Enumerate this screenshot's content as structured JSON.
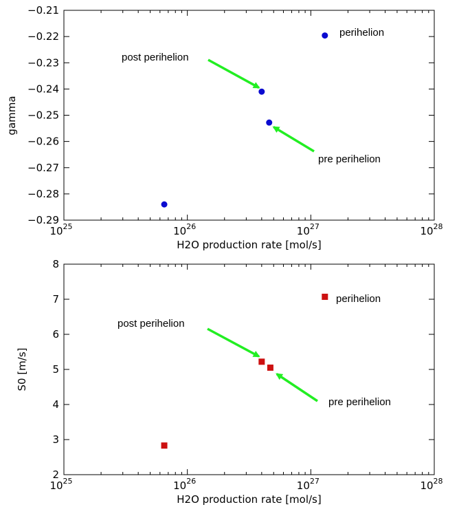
{
  "chart_data": [
    {
      "type": "scatter",
      "xlabel": "H2O production rate [mol/s]",
      "ylabel": "gamma",
      "xscale": "log",
      "xlim": [
        1e+25,
        1e+28
      ],
      "ylim": [
        -0.29,
        -0.21
      ],
      "x_ticks": [
        {
          "base": "10",
          "exp": "25"
        },
        {
          "base": "10",
          "exp": "26"
        },
        {
          "base": "10",
          "exp": "27"
        },
        {
          "base": "10",
          "exp": "28"
        }
      ],
      "y_ticks": [
        "−0.29",
        "−0.28",
        "−0.27",
        "−0.26",
        "−0.25",
        "−0.24",
        "−0.23",
        "−0.22",
        "−0.21"
      ],
      "marker": "circle",
      "color": "#0b0bd0",
      "points": [
        {
          "x": 6.5e+25,
          "y": -0.284
        },
        {
          "x": 4e+26,
          "y": -0.241
        },
        {
          "x": 4.6e+26,
          "y": -0.2528
        },
        {
          "x": 1.3e+27,
          "y": -0.2196
        }
      ],
      "legend": "perihelion",
      "annotations": [
        {
          "text": "post perihelion",
          "arrow_to": {
            "x": 3.8e+26,
            "y": -0.2395
          }
        },
        {
          "text": "pre perihelion",
          "arrow_to": {
            "x": 5e+26,
            "y": -0.2545
          }
        }
      ]
    },
    {
      "type": "scatter",
      "xlabel": "H2O production rate [mol/s]",
      "ylabel": "S0 [m/s]",
      "xscale": "log",
      "xlim": [
        1e+25,
        1e+28
      ],
      "ylim": [
        2,
        8
      ],
      "x_ticks": [
        {
          "base": "10",
          "exp": "25"
        },
        {
          "base": "10",
          "exp": "26"
        },
        {
          "base": "10",
          "exp": "27"
        },
        {
          "base": "10",
          "exp": "28"
        }
      ],
      "y_ticks": [
        "2",
        "3",
        "4",
        "5",
        "6",
        "7",
        "8"
      ],
      "marker": "square",
      "color": "#cc1111",
      "points": [
        {
          "x": 6.5e+25,
          "y": 2.83
        },
        {
          "x": 4e+26,
          "y": 5.22
        },
        {
          "x": 4.7e+26,
          "y": 5.05
        },
        {
          "x": 1.3e+27,
          "y": 7.07
        }
      ],
      "legend": "perihelion",
      "annotations": [
        {
          "text": "post perihelion",
          "arrow_to": {
            "x": 3.8e+26,
            "y": 5.37
          }
        },
        {
          "text": "pre perihelion",
          "arrow_to": {
            "x": 5.3e+26,
            "y": 4.87
          }
        }
      ]
    }
  ],
  "arrow_color": "#22ee22"
}
